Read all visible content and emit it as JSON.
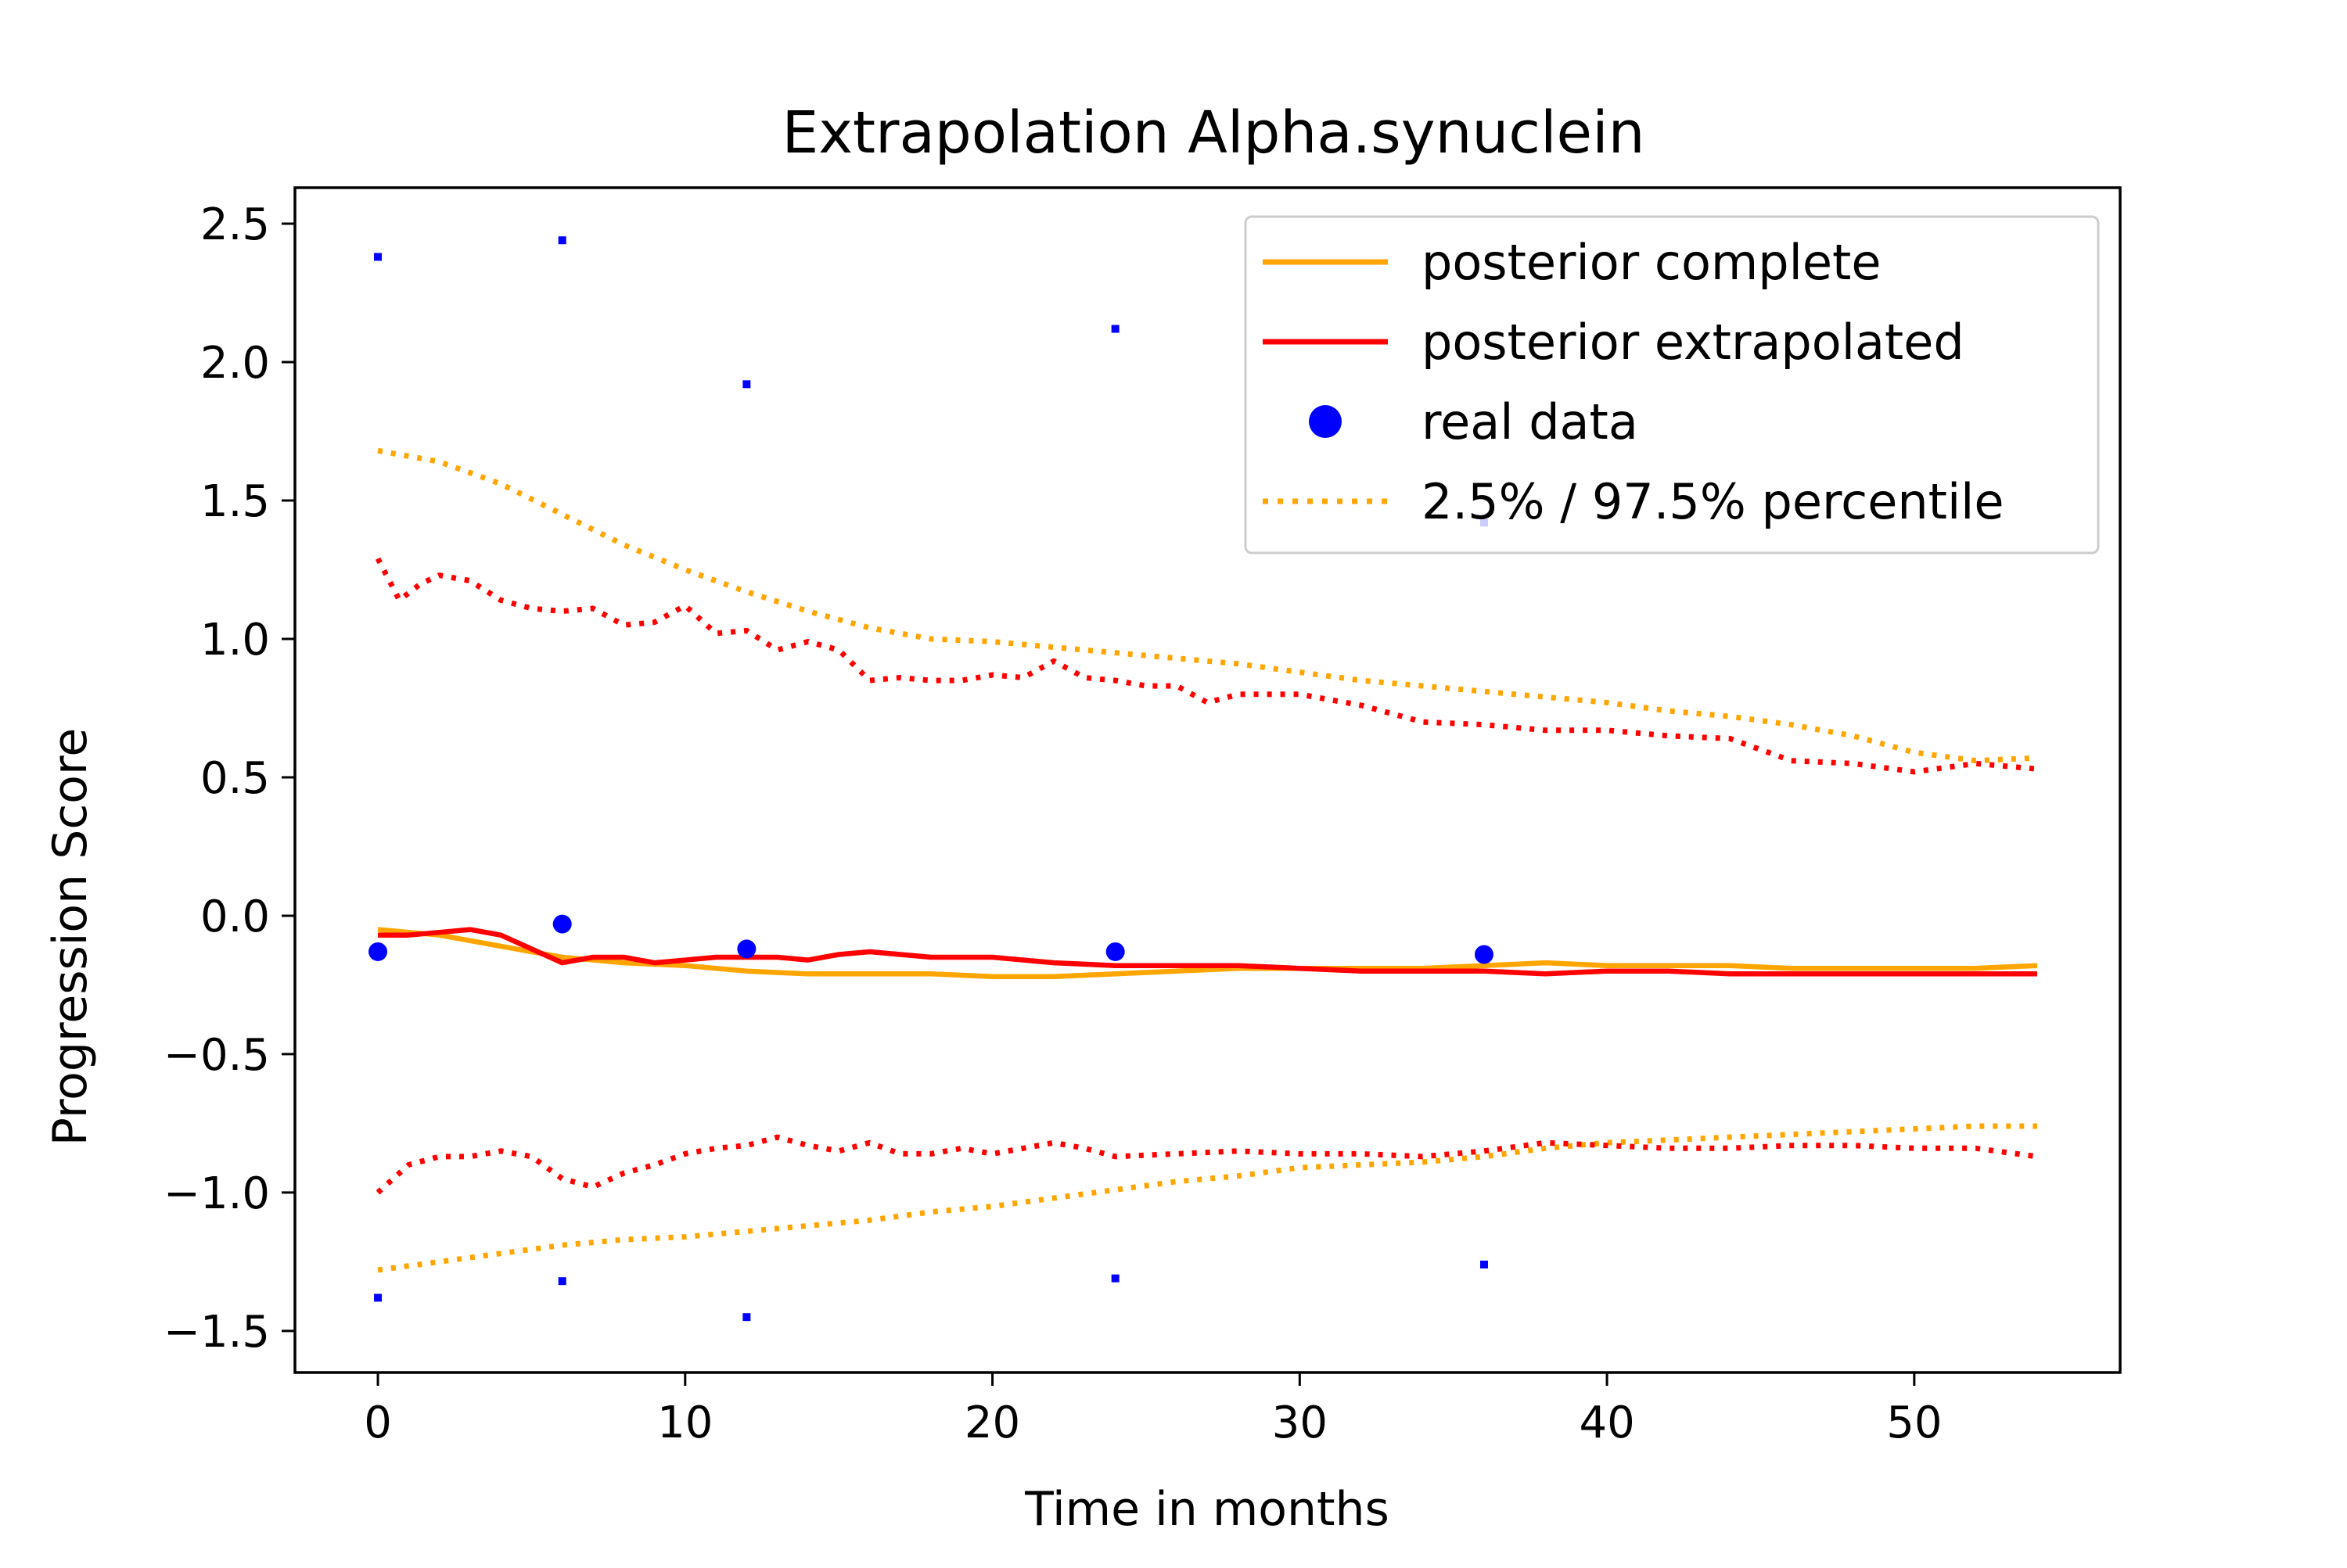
{
  "chart_data": {
    "type": "line",
    "title": "Extrapolation Alpha.synuclein",
    "xlabel": "Time in months",
    "ylabel": "Progression Score",
    "xlim": [
      -2.7,
      56.7
    ],
    "ylim": [
      -1.65,
      2.63
    ],
    "xticks": [
      0,
      10,
      20,
      30,
      40,
      50
    ],
    "yticks": [
      2.5,
      2.0,
      1.5,
      1.0,
      0.5,
      0.0,
      -0.5,
      -1.0,
      -1.5
    ],
    "xtick_labels": [
      "0",
      "10",
      "20",
      "30",
      "40",
      "50"
    ],
    "ytick_labels": [
      "2.5",
      "2.0",
      "1.5",
      "1.0",
      "0.5",
      "0.0",
      "−0.5",
      "−1.0",
      "−1.5"
    ],
    "grid": false,
    "legend_position": "top-right",
    "colors": {
      "complete": "#ffa500",
      "extrapolated": "#ff0000",
      "real": "#0000ff"
    },
    "legend": [
      {
        "label": "posterior complete",
        "style": "solid",
        "color": "#ffa500",
        "marker": "line"
      },
      {
        "label": "posterior extrapolated",
        "style": "solid",
        "color": "#ff0000",
        "marker": "line"
      },
      {
        "label": "real data",
        "style": "none",
        "color": "#0000ff",
        "marker": "circle"
      },
      {
        "label": "2.5% / 97.5% percentile",
        "style": "dotted",
        "color": "#ffa500",
        "marker": "line"
      }
    ],
    "series": [
      {
        "name": "posterior complete",
        "style": "solid",
        "color": "#ffa500",
        "x": [
          0,
          2,
          4,
          6,
          8,
          10,
          12,
          14,
          16,
          18,
          20,
          22,
          24,
          26,
          28,
          30,
          32,
          34,
          36,
          38,
          40,
          42,
          44,
          46,
          48,
          50,
          52,
          54
        ],
        "y": [
          -0.05,
          -0.07,
          -0.11,
          -0.15,
          -0.17,
          -0.18,
          -0.2,
          -0.21,
          -0.21,
          -0.21,
          -0.22,
          -0.22,
          -0.21,
          -0.2,
          -0.19,
          -0.19,
          -0.19,
          -0.19,
          -0.18,
          -0.17,
          -0.18,
          -0.18,
          -0.18,
          -0.19,
          -0.19,
          -0.19,
          -0.19,
          -0.18
        ]
      },
      {
        "name": "posterior extrapolated",
        "style": "solid",
        "color": "#ff0000",
        "x": [
          0,
          1,
          2,
          3,
          4,
          5,
          6,
          7,
          8,
          9,
          10,
          11,
          12,
          13,
          14,
          15,
          16,
          17,
          18,
          19,
          20,
          22,
          24,
          26,
          28,
          30,
          32,
          34,
          36,
          38,
          40,
          42,
          44,
          46,
          48,
          50,
          52,
          54
        ],
        "y": [
          -0.07,
          -0.07,
          -0.06,
          -0.05,
          -0.07,
          -0.12,
          -0.17,
          -0.15,
          -0.15,
          -0.17,
          -0.16,
          -0.15,
          -0.15,
          -0.15,
          -0.16,
          -0.14,
          -0.13,
          -0.14,
          -0.15,
          -0.15,
          -0.15,
          -0.17,
          -0.18,
          -0.18,
          -0.18,
          -0.19,
          -0.2,
          -0.2,
          -0.2,
          -0.21,
          -0.2,
          -0.2,
          -0.21,
          -0.21,
          -0.21,
          -0.21,
          -0.21,
          -0.21
        ]
      },
      {
        "name": "upper percentile complete",
        "style": "dotted",
        "color": "#ffa500",
        "x": [
          0,
          2,
          4,
          6,
          8,
          10,
          12,
          14,
          16,
          18,
          20,
          22,
          24,
          26,
          28,
          30,
          32,
          34,
          36,
          38,
          40,
          42,
          44,
          46,
          48,
          50,
          52,
          54
        ],
        "y": [
          1.68,
          1.64,
          1.56,
          1.45,
          1.34,
          1.25,
          1.17,
          1.1,
          1.04,
          1.0,
          0.99,
          0.97,
          0.95,
          0.93,
          0.91,
          0.88,
          0.85,
          0.83,
          0.81,
          0.79,
          0.77,
          0.74,
          0.72,
          0.69,
          0.65,
          0.59,
          0.56,
          0.57
        ]
      },
      {
        "name": "lower percentile complete",
        "style": "dotted",
        "color": "#ffa500",
        "x": [
          0,
          2,
          4,
          6,
          8,
          10,
          12,
          14,
          16,
          18,
          20,
          22,
          24,
          26,
          28,
          30,
          32,
          34,
          36,
          38,
          40,
          42,
          44,
          46,
          48,
          50,
          52,
          54
        ],
        "y": [
          -1.28,
          -1.25,
          -1.22,
          -1.19,
          -1.17,
          -1.16,
          -1.14,
          -1.12,
          -1.1,
          -1.07,
          -1.05,
          -1.02,
          -0.99,
          -0.96,
          -0.94,
          -0.91,
          -0.9,
          -0.89,
          -0.87,
          -0.84,
          -0.82,
          -0.81,
          -0.8,
          -0.79,
          -0.78,
          -0.77,
          -0.76,
          -0.76
        ]
      },
      {
        "name": "upper percentile extrapolated",
        "style": "dotted",
        "color": "#ff0000",
        "x": [
          0,
          0.7,
          1.4,
          2,
          3,
          4,
          5,
          6,
          7,
          8,
          9,
          10,
          11,
          12,
          13,
          14,
          15,
          16,
          17,
          18,
          19,
          20,
          21,
          22,
          23,
          24,
          25,
          26,
          27,
          28,
          30,
          32,
          34,
          36,
          38,
          40,
          42,
          44,
          46,
          48,
          50,
          52,
          54
        ],
        "y": [
          1.29,
          1.14,
          1.2,
          1.23,
          1.21,
          1.14,
          1.11,
          1.1,
          1.11,
          1.05,
          1.06,
          1.12,
          1.02,
          1.03,
          0.96,
          0.99,
          0.96,
          0.85,
          0.86,
          0.85,
          0.85,
          0.87,
          0.86,
          0.92,
          0.86,
          0.85,
          0.83,
          0.83,
          0.77,
          0.8,
          0.8,
          0.76,
          0.7,
          0.69,
          0.67,
          0.67,
          0.65,
          0.64,
          0.56,
          0.55,
          0.52,
          0.55,
          0.53
        ]
      },
      {
        "name": "lower percentile extrapolated",
        "style": "dotted",
        "color": "#ff0000",
        "x": [
          0,
          1,
          2,
          3,
          4,
          5,
          6,
          7,
          8,
          9,
          10,
          11,
          12,
          13,
          14,
          15,
          16,
          17,
          18,
          19,
          20,
          21,
          22,
          23,
          24,
          26,
          28,
          30,
          32,
          34,
          36,
          38,
          40,
          42,
          44,
          46,
          48,
          50,
          52,
          54
        ],
        "y": [
          -1.0,
          -0.9,
          -0.87,
          -0.87,
          -0.85,
          -0.87,
          -0.95,
          -0.98,
          -0.93,
          -0.9,
          -0.86,
          -0.84,
          -0.83,
          -0.8,
          -0.83,
          -0.85,
          -0.82,
          -0.86,
          -0.86,
          -0.84,
          -0.86,
          -0.84,
          -0.82,
          -0.84,
          -0.87,
          -0.86,
          -0.85,
          -0.86,
          -0.86,
          -0.87,
          -0.85,
          -0.82,
          -0.83,
          -0.84,
          -0.84,
          -0.83,
          -0.83,
          -0.84,
          -0.84,
          -0.87
        ]
      },
      {
        "name": "real data",
        "style": "points",
        "color": "#0000ff",
        "x": [
          0,
          6,
          12,
          24,
          36
        ],
        "y": [
          -0.13,
          -0.03,
          -0.12,
          -0.13,
          -0.14
        ]
      },
      {
        "name": "real data upper",
        "style": "small-points",
        "color": "#0000ff",
        "x": [
          0,
          6,
          12,
          24,
          36
        ],
        "y": [
          2.38,
          2.44,
          1.92,
          2.12,
          1.42
        ]
      },
      {
        "name": "real data lower",
        "style": "small-points",
        "color": "#0000ff",
        "x": [
          0,
          6,
          12,
          24,
          36
        ],
        "y": [
          -1.38,
          -1.32,
          -1.45,
          -1.31,
          -1.26
        ]
      }
    ]
  }
}
